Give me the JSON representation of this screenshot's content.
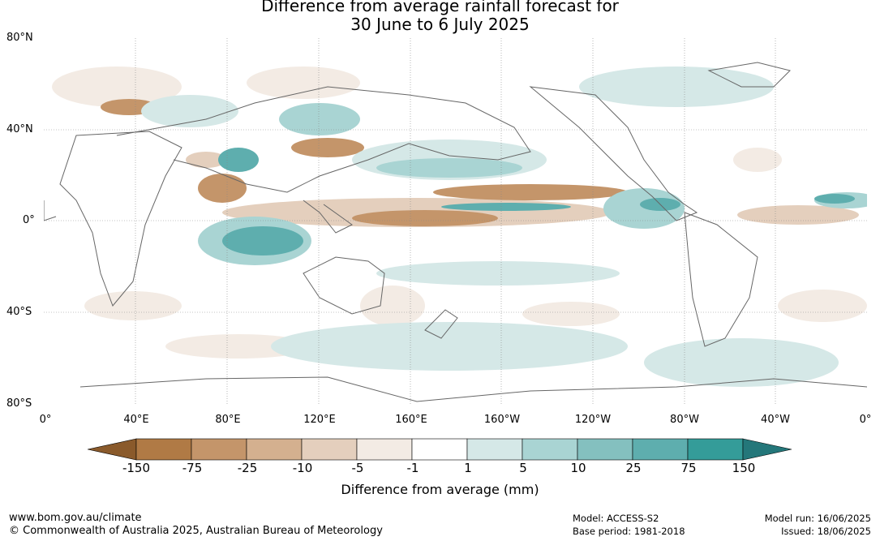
{
  "title": {
    "line1": "Difference from average rainfall forecast for",
    "line2": "30 June to 6 July 2025"
  },
  "lat_labels": [
    "80°N",
    "40°N",
    "0°",
    "40°S",
    "80°S"
  ],
  "lon_labels": [
    "0°",
    "40°E",
    "80°E",
    "120°E",
    "160°E",
    "160°W",
    "120°W",
    "80°W",
    "40°W",
    "0°"
  ],
  "colorbar": {
    "ticks": [
      "-150",
      "-75",
      "-25",
      "-10",
      "-5",
      "-1",
      "1",
      "5",
      "10",
      "25",
      "75",
      "150"
    ],
    "colors": [
      "#8a5a2b",
      "#b07a45",
      "#c4956a",
      "#d4b08f",
      "#e4cfbd",
      "#f3ebe4",
      "#ffffff",
      "#d5e8e7",
      "#a9d4d3",
      "#84c0bf",
      "#5eaeae",
      "#349c99",
      "#24777a"
    ],
    "label": "Difference from average (mm)"
  },
  "footer": {
    "url": "www.bom.gov.au/climate",
    "copyright": "© Commonwealth of Australia 2025, Australian Bureau of Meteorology",
    "model": "Model: ACCESS-S2",
    "base_period": "Base period: 1981-2018",
    "model_run": "Model run: 16/06/2025",
    "issued": "Issued: 18/06/2025"
  }
}
